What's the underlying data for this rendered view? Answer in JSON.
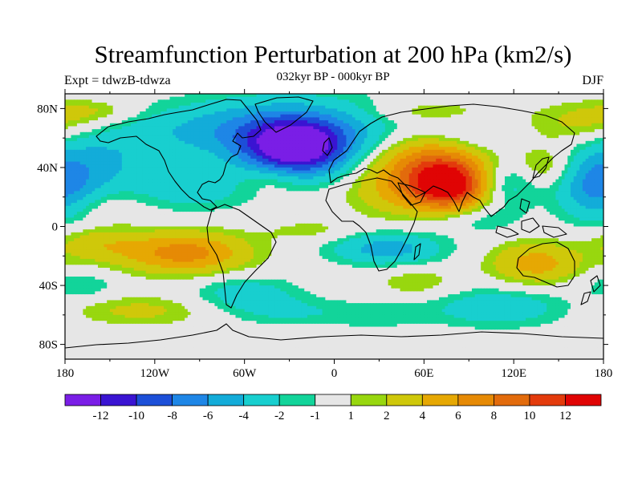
{
  "header": {
    "title": "Streamfunction Perturbation at 200 hPa (km2/s)",
    "left_string": "Expt = tdwzB-tdwza",
    "center_string": "032kyr BP - 000kyr BP",
    "right_string": "DJF"
  },
  "chart_data": {
    "type": "heatmap",
    "projection": "cylindrical-equidistant",
    "variable": "streamfunction perturbation",
    "units": "km2/s",
    "xlim": [
      -180,
      180
    ],
    "ylim": [
      -90,
      90
    ],
    "x_ticks": [
      {
        "value": -180,
        "label": "180"
      },
      {
        "value": -120,
        "label": "120W"
      },
      {
        "value": -60,
        "label": "60W"
      },
      {
        "value": 0,
        "label": "0"
      },
      {
        "value": 60,
        "label": "60E"
      },
      {
        "value": 120,
        "label": "120E"
      },
      {
        "value": 180,
        "label": "180"
      }
    ],
    "y_ticks": [
      {
        "value": 80,
        "label": "80N"
      },
      {
        "value": 40,
        "label": "40N"
      },
      {
        "value": 0,
        "label": "0"
      },
      {
        "value": -40,
        "label": "40S"
      },
      {
        "value": -80,
        "label": "80S"
      }
    ],
    "colorbar": {
      "levels": [
        -12,
        -10,
        -8,
        -6,
        -4,
        -2,
        -1,
        1,
        2,
        4,
        6,
        8,
        10,
        12
      ],
      "labels": [
        "-12",
        "-10",
        "-8",
        "-6",
        "-4",
        "-2",
        "-1",
        "1",
        "2",
        "4",
        "6",
        "8",
        "10",
        "12"
      ],
      "colors": [
        "#7a1ee6",
        "#3a14d2",
        "#1c4fd8",
        "#1e86e6",
        "#13acd9",
        "#18cfcf",
        "#12d49a",
        "#e6e6e6",
        "#98d70f",
        "#cfc80a",
        "#e6a803",
        "#e68a05",
        "#e26b0c",
        "#e33b0c",
        "#e00404"
      ]
    },
    "anomaly_centers": [
      {
        "lon": -25,
        "lat": 52,
        "value": -12,
        "extent_lon": 34,
        "extent_lat": 19
      },
      {
        "lon": -30,
        "lat": 65,
        "value": -6,
        "extent_lon": 70,
        "extent_lat": 22
      },
      {
        "lon": -100,
        "lat": 65,
        "value": -2,
        "extent_lon": 70,
        "extent_lat": 18
      },
      {
        "lon": -160,
        "lat": 42,
        "value": -4,
        "extent_lon": 40,
        "extent_lat": 24
      },
      {
        "lon": -95,
        "lat": 25,
        "value": -3,
        "extent_lon": 38,
        "extent_lat": 15
      },
      {
        "lon": -40,
        "lat": 33,
        "value": 2,
        "extent_lon": 22,
        "extent_lat": 10
      },
      {
        "lon": -160,
        "lat": 15,
        "value": 1.5,
        "extent_lon": 35,
        "extent_lat": 12
      },
      {
        "lon": 65,
        "lat": 45,
        "value": 7,
        "extent_lon": 38,
        "extent_lat": 18
      },
      {
        "lon": 78,
        "lat": 27,
        "value": 12,
        "extent_lon": 26,
        "extent_lat": 16
      },
      {
        "lon": 45,
        "lat": 25,
        "value": 4,
        "extent_lon": 35,
        "extent_lat": 18
      },
      {
        "lon": 90,
        "lat": 60,
        "value": -2,
        "extent_lon": 30,
        "extent_lat": 12
      },
      {
        "lon": 115,
        "lat": 30,
        "value": -4,
        "extent_lon": 22,
        "extent_lat": 16
      },
      {
        "lon": 140,
        "lat": 40,
        "value": 3,
        "extent_lon": 22,
        "extent_lat": 14
      },
      {
        "lon": 175,
        "lat": 25,
        "value": -6,
        "extent_lon": 25,
        "extent_lat": 22
      },
      {
        "lon": 170,
        "lat": 70,
        "value": 3,
        "extent_lon": 40,
        "extent_lat": 14
      },
      {
        "lon": -160,
        "lat": 78,
        "value": 2,
        "extent_lon": 30,
        "extent_lat": 8
      },
      {
        "lon": 60,
        "lat": 78,
        "value": 2,
        "extent_lon": 40,
        "extent_lat": 8
      },
      {
        "lon": -100,
        "lat": -18,
        "value": 7,
        "extent_lon": 42,
        "extent_lat": 14
      },
      {
        "lon": -160,
        "lat": -12,
        "value": 3,
        "extent_lon": 30,
        "extent_lat": 12
      },
      {
        "lon": -15,
        "lat": -3,
        "value": 1.5,
        "extent_lon": 30,
        "extent_lat": 8
      },
      {
        "lon": 35,
        "lat": -15,
        "value": -5,
        "extent_lon": 38,
        "extent_lat": 11
      },
      {
        "lon": 95,
        "lat": 5,
        "value": -2,
        "extent_lon": 30,
        "extent_lat": 10
      },
      {
        "lon": 135,
        "lat": -25,
        "value": 5,
        "extent_lon": 30,
        "extent_lat": 14
      },
      {
        "lon": -170,
        "lat": -40,
        "value": -2,
        "extent_lon": 25,
        "extent_lat": 10
      },
      {
        "lon": -60,
        "lat": -45,
        "value": -3,
        "extent_lon": 35,
        "extent_lat": 12
      },
      {
        "lon": -130,
        "lat": -57,
        "value": 2.5,
        "extent_lon": 45,
        "extent_lat": 10
      },
      {
        "lon": 55,
        "lat": -38,
        "value": 2,
        "extent_lon": 25,
        "extent_lat": 10
      },
      {
        "lon": 110,
        "lat": -55,
        "value": -3.5,
        "extent_lon": 45,
        "extent_lat": 13
      },
      {
        "lon": -30,
        "lat": -58,
        "value": -2,
        "extent_lon": 40,
        "extent_lat": 10
      },
      {
        "lon": 30,
        "lat": -60,
        "value": -1.5,
        "extent_lon": 35,
        "extent_lat": 10
      }
    ],
    "grid": false,
    "legend": "bottom"
  }
}
